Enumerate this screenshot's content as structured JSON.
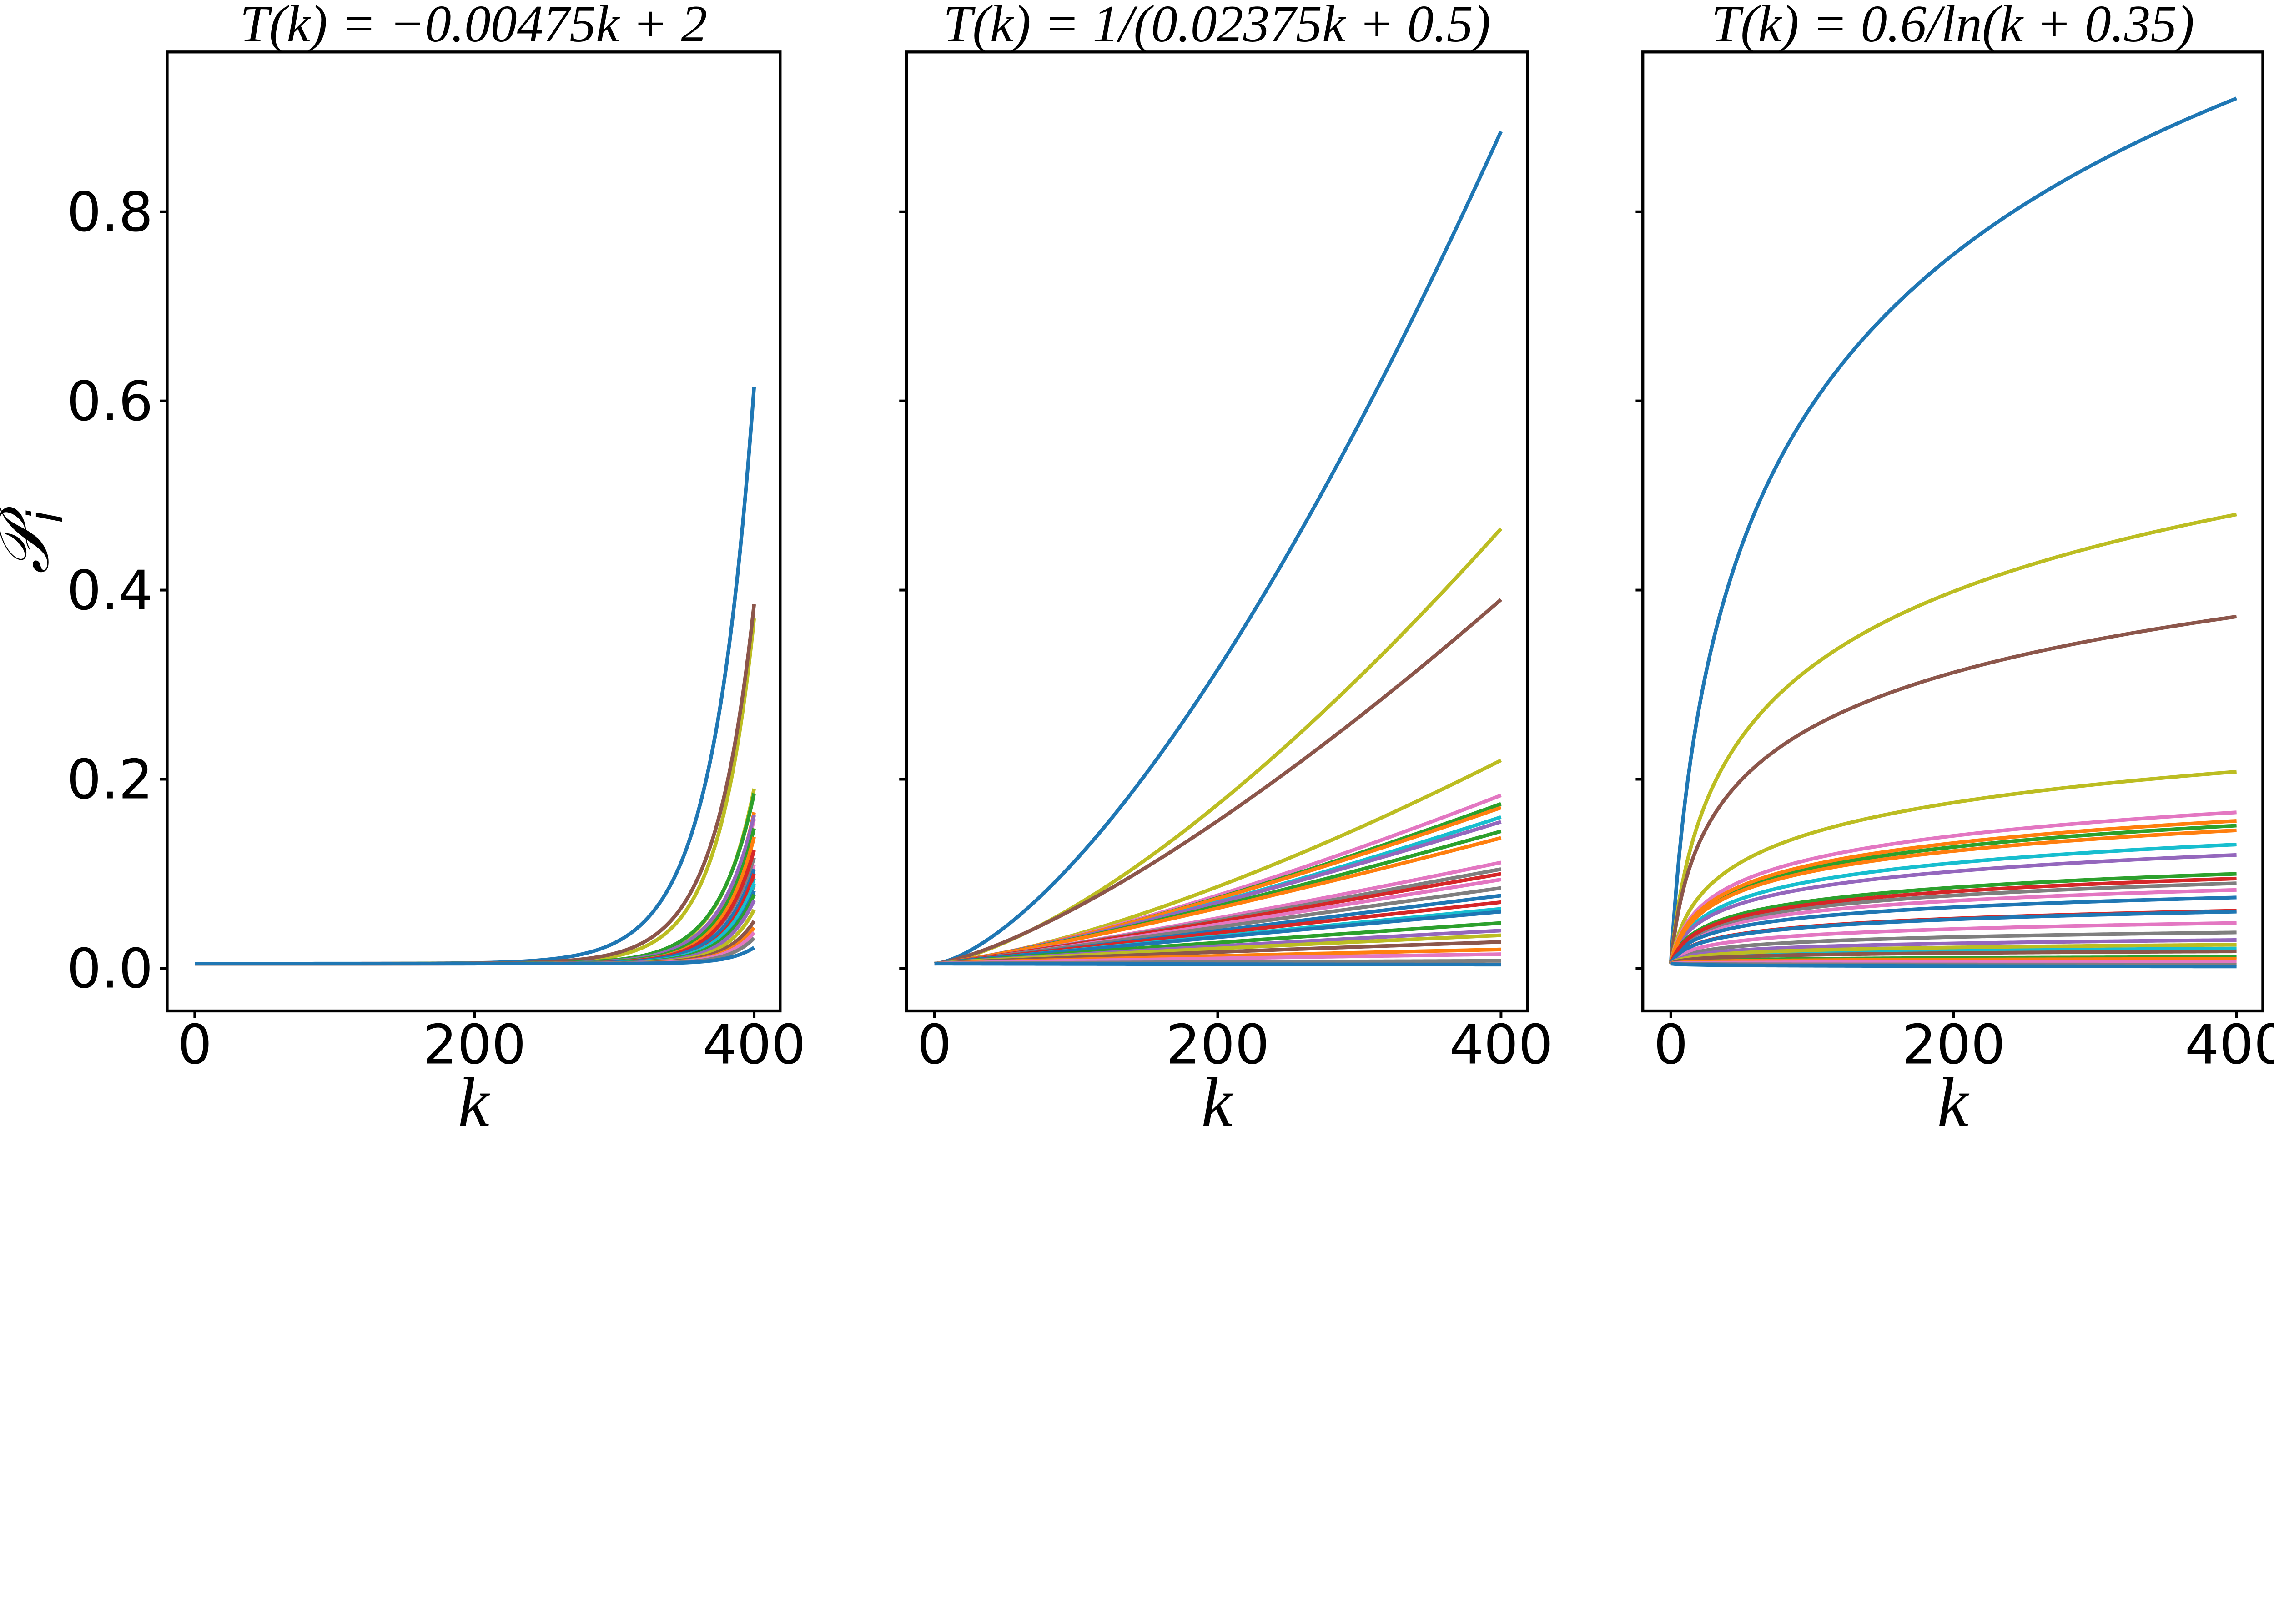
{
  "figure": {
    "background": "#ffffff",
    "spine_color": "#000000",
    "ylabel": {
      "main": "𝒫",
      "sub": "i"
    },
    "yticks": {
      "values": [
        0.0,
        0.2,
        0.4,
        0.6,
        0.8
      ],
      "labels": [
        "0.0",
        "0.2",
        "0.4",
        "0.6",
        "0.8"
      ]
    },
    "xticks": {
      "values": [
        0,
        200,
        400
      ],
      "labels": [
        "0",
        "200",
        "400"
      ]
    },
    "xlim": [
      -19.8,
      418.6
    ],
    "ylim": [
      -0.045,
      0.969
    ],
    "initial_probability": 0.005,
    "n_curves": 28
  },
  "chart_data": [
    {
      "type": "line",
      "title": "T(k) = −0.00475k + 2",
      "xlabel": "k",
      "ylabel": "𝒫_i",
      "xticks": {
        "values": [
          0,
          200,
          400
        ],
        "labels": [
          "0",
          "200",
          "400"
        ]
      },
      "x_range": [
        0,
        400
      ],
      "curve_model": {
        "kind": "exp_rise",
        "formula": "P(k) = p0 + (end − p0)·exp((k−400)/tau)"
      },
      "series": [
        {
          "color": "#1f77b4",
          "end": 0.615,
          "tau": 30
        },
        {
          "color": "#bcbd22",
          "end": 0.37,
          "tau": 26
        },
        {
          "color": "#8c564b",
          "end": 0.385,
          "tau": 28
        },
        {
          "color": "#bcbd22",
          "end": 0.19,
          "tau": 25
        },
        {
          "color": "#e377c2",
          "end": 0.158,
          "tau": 24
        },
        {
          "color": "#2ca02c",
          "end": 0.185,
          "tau": 26
        },
        {
          "color": "#ff7f0e",
          "end": 0.165,
          "tau": 23
        },
        {
          "color": "#17becf",
          "end": 0.095,
          "tau": 22
        },
        {
          "color": "#9467bd",
          "end": 0.162,
          "tau": 25
        },
        {
          "color": "#2ca02c",
          "end": 0.148,
          "tau": 24
        },
        {
          "color": "#ff7f0e",
          "end": 0.139,
          "tau": 23
        },
        {
          "color": "#e377c2",
          "end": 0.11,
          "tau": 22
        },
        {
          "color": "#7f7f7f",
          "end": 0.117,
          "tau": 24
        },
        {
          "color": "#d62728",
          "end": 0.125,
          "tau": 23
        },
        {
          "color": "#e377c2",
          "end": 0.105,
          "tau": 21
        },
        {
          "color": "#7f7f7f",
          "end": 0.088,
          "tau": 22
        },
        {
          "color": "#1f77b4",
          "end": 0.105,
          "tau": 23
        },
        {
          "color": "#d62728",
          "end": 0.1,
          "tau": 21
        },
        {
          "color": "#17becf",
          "end": 0.09,
          "tau": 22
        },
        {
          "color": "#1f77b4",
          "end": 0.082,
          "tau": 21
        },
        {
          "color": "#2ca02c",
          "end": 0.078,
          "tau": 22
        },
        {
          "color": "#9467bd",
          "end": 0.072,
          "tau": 21
        },
        {
          "color": "#bcbd22",
          "end": 0.062,
          "tau": 20
        },
        {
          "color": "#8c564b",
          "end": 0.05,
          "tau": 20
        },
        {
          "color": "#ff7f0e",
          "end": 0.043,
          "tau": 19
        },
        {
          "color": "#e377c2",
          "end": 0.038,
          "tau": 19
        },
        {
          "color": "#7f7f7f",
          "end": 0.032,
          "tau": 18
        },
        {
          "color": "#1f77b4",
          "end": 0.022,
          "tau": 18
        }
      ]
    },
    {
      "type": "line",
      "title": "T(k) = 1/(0.02375k + 0.5)",
      "xlabel": "k",
      "xticks": {
        "values": [
          0,
          200,
          400
        ],
        "labels": [
          "0",
          "200",
          "400"
        ]
      },
      "x_range": [
        0,
        400
      ],
      "curve_model": {
        "kind": "power",
        "formula": "P(k) = p0 + (end − p0)·(k/400)^p"
      },
      "series": [
        {
          "color": "#1f77b4",
          "end": 0.885,
          "p": 1.5
        },
        {
          "color": "#bcbd22",
          "end": 0.465,
          "p": 1.45
        },
        {
          "color": "#8c564b",
          "end": 0.39,
          "p": 1.35
        },
        {
          "color": "#bcbd22",
          "end": 0.22,
          "p": 1.4
        },
        {
          "color": "#e377c2",
          "end": 0.183,
          "p": 1.3
        },
        {
          "color": "#2ca02c",
          "end": 0.174,
          "p": 1.28
        },
        {
          "color": "#ff7f0e",
          "end": 0.17,
          "p": 1.26
        },
        {
          "color": "#17becf",
          "end": 0.16,
          "p": 1.25
        },
        {
          "color": "#9467bd",
          "end": 0.155,
          "p": 1.22
        },
        {
          "color": "#2ca02c",
          "end": 0.145,
          "p": 1.2
        },
        {
          "color": "#ff7f0e",
          "end": 0.138,
          "p": 1.18
        },
        {
          "color": "#e377c2",
          "end": 0.112,
          "p": 1.15
        },
        {
          "color": "#7f7f7f",
          "end": 0.105,
          "p": 1.12
        },
        {
          "color": "#d62728",
          "end": 0.1,
          "p": 1.1
        },
        {
          "color": "#e377c2",
          "end": 0.094,
          "p": 1.1
        },
        {
          "color": "#7f7f7f",
          "end": 0.085,
          "p": 1.05
        },
        {
          "color": "#1f77b4",
          "end": 0.077,
          "p": 1.05
        },
        {
          "color": "#d62728",
          "end": 0.07,
          "p": 1.0
        },
        {
          "color": "#17becf",
          "end": 0.063,
          "p": 1.0
        },
        {
          "color": "#1f77b4",
          "end": 0.06,
          "p": 0.98
        },
        {
          "color": "#2ca02c",
          "end": 0.048,
          "p": 0.95
        },
        {
          "color": "#9467bd",
          "end": 0.04,
          "p": 0.92
        },
        {
          "color": "#bcbd22",
          "end": 0.035,
          "p": 0.9
        },
        {
          "color": "#8c564b",
          "end": 0.028,
          "p": 0.9
        },
        {
          "color": "#ff7f0e",
          "end": 0.02,
          "p": 0.88
        },
        {
          "color": "#e377c2",
          "end": 0.015,
          "p": 0.85
        },
        {
          "color": "#7f7f7f",
          "end": 0.008,
          "p": 0.8
        },
        {
          "color": "#1f77b4",
          "end": 0.004,
          "p": 0.8
        }
      ]
    },
    {
      "type": "line",
      "title": "T(k) = 0.6/ln(k + 0.35)",
      "xlabel": "k",
      "xticks": {
        "values": [
          0,
          200,
          400
        ],
        "labels": [
          "0",
          "200",
          "400"
        ]
      },
      "x_range": [
        0,
        400
      ],
      "curve_model": {
        "kind": "log_saturation",
        "formula": "P(k) = p0 + (end − p0)·ln(1 + k/c)/ln(1 + 400/c)"
      },
      "series": [
        {
          "color": "#1f77b4",
          "end": 0.92,
          "c": 10
        },
        {
          "color": "#bcbd22",
          "end": 0.48,
          "c": 8
        },
        {
          "color": "#8c564b",
          "end": 0.372,
          "c": 6
        },
        {
          "color": "#bcbd22",
          "end": 0.208,
          "c": 6
        },
        {
          "color": "#e377c2",
          "end": 0.165,
          "c": 5
        },
        {
          "color": "#2ca02c",
          "end": 0.151,
          "c": 5
        },
        {
          "color": "#ff7f0e",
          "end": 0.156,
          "c": 5
        },
        {
          "color": "#17becf",
          "end": 0.131,
          "c": 5
        },
        {
          "color": "#9467bd",
          "end": 0.12,
          "c": 4.5
        },
        {
          "color": "#2ca02c",
          "end": 0.1,
          "c": 4.5
        },
        {
          "color": "#ff7f0e",
          "end": 0.146,
          "c": 5
        },
        {
          "color": "#e377c2",
          "end": 0.083,
          "c": 4
        },
        {
          "color": "#7f7f7f",
          "end": 0.038,
          "c": 4
        },
        {
          "color": "#d62728",
          "end": 0.061,
          "c": 4
        },
        {
          "color": "#e377c2",
          "end": 0.048,
          "c": 4
        },
        {
          "color": "#7f7f7f",
          "end": 0.09,
          "c": 4.5
        },
        {
          "color": "#1f77b4",
          "end": 0.075,
          "c": 4
        },
        {
          "color": "#d62728",
          "end": 0.095,
          "c": 4.5
        },
        {
          "color": "#17becf",
          "end": 0.021,
          "c": 3.5
        },
        {
          "color": "#1f77b4",
          "end": 0.06,
          "c": 4
        },
        {
          "color": "#2ca02c",
          "end": 0.012,
          "c": 3
        },
        {
          "color": "#9467bd",
          "end": 0.03,
          "c": 3.5
        },
        {
          "color": "#bcbd22",
          "end": 0.025,
          "c": 3.5
        },
        {
          "color": "#8c564b",
          "end": 0.018,
          "c": 3
        },
        {
          "color": "#ff7f0e",
          "end": 0.01,
          "c": 3
        },
        {
          "color": "#e377c2",
          "end": 0.007,
          "c": 3
        },
        {
          "color": "#7f7f7f",
          "end": 0.004,
          "c": 3
        },
        {
          "color": "#1f77b4",
          "end": 0.002,
          "c": 3
        }
      ]
    }
  ]
}
